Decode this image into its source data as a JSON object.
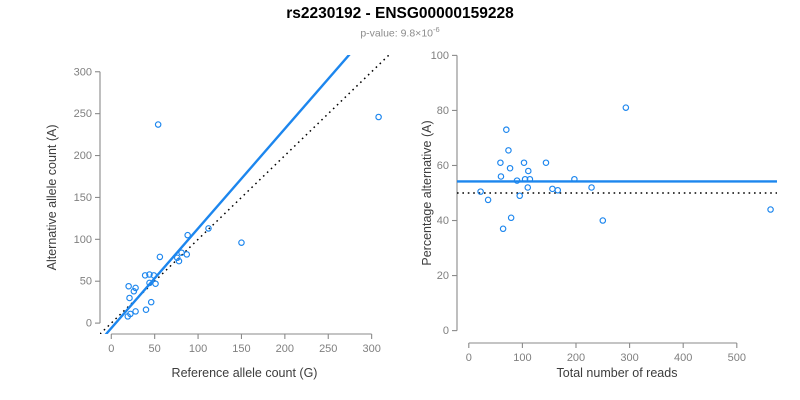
{
  "header": {
    "title": "rs2230192 - ENSG00000159228",
    "subtitle_prefix": "p-value: 9.8×10",
    "subtitle_exponent": "-6"
  },
  "colors": {
    "accent": "#1C86EE",
    "axis": "#8a8a8a",
    "tick_label": "#7f7f7f",
    "dotted_line": "#000000",
    "title": "#000000",
    "subtitle": "#8c8c8c"
  },
  "chart_data": [
    {
      "type": "scatter",
      "panel": "left",
      "xlabel": "Reference allele count (G)",
      "ylabel": "Alternative allele count (A)",
      "xticks": [
        0,
        50,
        100,
        150,
        200,
        250,
        300
      ],
      "yticks": [
        0,
        50,
        100,
        150,
        200,
        250,
        300
      ],
      "xlim": [
        -13,
        320
      ],
      "ylim": [
        -13,
        320
      ],
      "grid": false,
      "points": [
        [
          19,
          8
        ],
        [
          22,
          11
        ],
        [
          28,
          14
        ],
        [
          21,
          30
        ],
        [
          26,
          38
        ],
        [
          20,
          44
        ],
        [
          28,
          42
        ],
        [
          40,
          16
        ],
        [
          46,
          25
        ],
        [
          44,
          48
        ],
        [
          51,
          47
        ],
        [
          39,
          57
        ],
        [
          44,
          58
        ],
        [
          49,
          57
        ],
        [
          56,
          79
        ],
        [
          76,
          78
        ],
        [
          78,
          74
        ],
        [
          81,
          84
        ],
        [
          87,
          82
        ],
        [
          88,
          105
        ],
        [
          112,
          113
        ],
        [
          150,
          96
        ],
        [
          54,
          237
        ],
        [
          308,
          246
        ]
      ],
      "lines": [
        {
          "name": "identity-line",
          "style": "dotted",
          "color": "#000000",
          "slope": 1,
          "intercept": 0
        },
        {
          "name": "regression-line",
          "style": "solid",
          "color": "#1C86EE",
          "slope": 1.19,
          "intercept": -6
        }
      ]
    },
    {
      "type": "scatter",
      "panel": "right",
      "xlabel": "Total number of reads",
      "ylabel": "Percentage alternative (A)",
      "xticks": [
        0,
        100,
        200,
        300,
        400,
        500
      ],
      "yticks": [
        0,
        20,
        40,
        60,
        80,
        100
      ],
      "xlim": [
        -22,
        575
      ],
      "ylim": [
        -4.5,
        104.5
      ],
      "grid": false,
      "points": [
        [
          22,
          50.5
        ],
        [
          36,
          47.5
        ],
        [
          59,
          61
        ],
        [
          60,
          56
        ],
        [
          64,
          37
        ],
        [
          70,
          73
        ],
        [
          74,
          65.5
        ],
        [
          77,
          59
        ],
        [
          79,
          41
        ],
        [
          90,
          54.5
        ],
        [
          95,
          49
        ],
        [
          103,
          61
        ],
        [
          105,
          55
        ],
        [
          110,
          52
        ],
        [
          111,
          58
        ],
        [
          114,
          55
        ],
        [
          144,
          61
        ],
        [
          156,
          51.5
        ],
        [
          166,
          51
        ],
        [
          197,
          55
        ],
        [
          229,
          52
        ],
        [
          250,
          40
        ],
        [
          293,
          81
        ],
        [
          563,
          44
        ]
      ],
      "lines": [
        {
          "name": "mean-percentage-line",
          "style": "solid",
          "color": "#1C86EE",
          "slope": 0,
          "intercept": 54.2
        },
        {
          "name": "fifty-percent-line",
          "style": "dotted",
          "color": "#000000",
          "slope": 0,
          "intercept": 50
        }
      ]
    }
  ]
}
